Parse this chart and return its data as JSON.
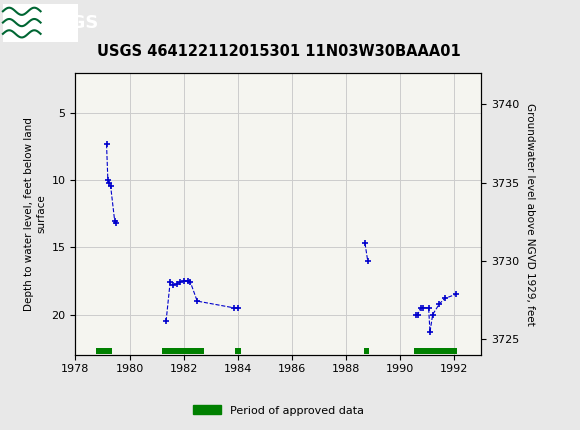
{
  "title": "USGS 464122112015301 11N03W30BAAA01",
  "ylabel_left": "Depth to water level, feet below land\nsurface",
  "ylabel_right": "Groundwater level above NGVD 1929, feet",
  "xlim": [
    1978,
    1993
  ],
  "ylim_left_top": 2,
  "ylim_left_bottom": 23,
  "ylim_right_top": 3742,
  "ylim_right_bottom": 3724,
  "xticks": [
    1978,
    1980,
    1982,
    1984,
    1986,
    1988,
    1990,
    1992
  ],
  "yticks_left": [
    5,
    10,
    15,
    20
  ],
  "yticks_right": [
    3725,
    3730,
    3735,
    3740
  ],
  "header_color": "#006633",
  "data_color": "#0000cc",
  "approved_color": "#008000",
  "grid_color": "#cccccc",
  "data_points_group1": [
    [
      1979.15,
      7.3
    ],
    [
      1979.2,
      10.0
    ],
    [
      1979.25,
      10.2
    ],
    [
      1979.3,
      10.4
    ],
    [
      1979.45,
      13.0
    ],
    [
      1979.5,
      13.2
    ]
  ],
  "data_points_group2": [
    [
      1981.35,
      20.5
    ],
    [
      1981.5,
      17.6
    ],
    [
      1981.6,
      17.8
    ],
    [
      1981.75,
      17.7
    ],
    [
      1981.85,
      17.6
    ],
    [
      1982.0,
      17.5
    ],
    [
      1982.15,
      17.5
    ],
    [
      1982.25,
      17.6
    ],
    [
      1982.5,
      19.0
    ],
    [
      1983.85,
      19.5
    ]
  ],
  "data_points_group3": [
    [
      1984.0,
      19.5
    ]
  ],
  "data_points_group4": [
    [
      1988.7,
      14.7
    ],
    [
      1988.8,
      16.0
    ]
  ],
  "data_points_group5": [
    [
      1990.6,
      20.0
    ],
    [
      1990.65,
      20.0
    ],
    [
      1990.75,
      19.5
    ],
    [
      1990.85,
      19.5
    ],
    [
      1991.05,
      19.5
    ],
    [
      1991.1,
      21.3
    ],
    [
      1991.2,
      20.0
    ],
    [
      1991.45,
      19.2
    ],
    [
      1991.65,
      18.8
    ],
    [
      1992.05,
      18.5
    ]
  ],
  "approved_bars": [
    [
      1978.75,
      1979.35
    ],
    [
      1981.2,
      1982.75
    ],
    [
      1983.9,
      1984.1
    ],
    [
      1988.65,
      1988.85
    ],
    [
      1990.5,
      1992.1
    ]
  ],
  "legend_label": "Period of approved data",
  "legend_color": "#008000",
  "figsize": [
    5.8,
    4.3
  ],
  "dpi": 100
}
